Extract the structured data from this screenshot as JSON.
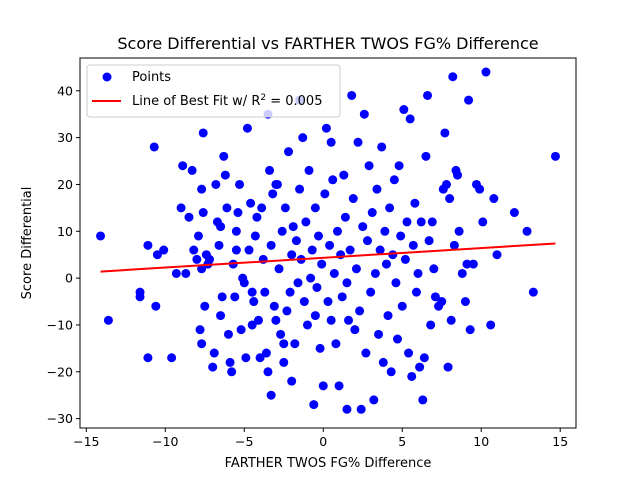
{
  "chart_data": {
    "type": "scatter",
    "title": "Score Differential vs FARTHER TWOS FG% Difference",
    "xlabel": "FARTHER TWOS FG% Difference",
    "ylabel": "Score Differential",
    "xlim": [
      -15.4,
      16.0
    ],
    "ylim": [
      -32,
      47
    ],
    "xticks": [
      -15,
      -10,
      -5,
      0,
      5,
      10,
      15
    ],
    "yticks": [
      -30,
      -20,
      -10,
      0,
      10,
      20,
      30,
      40
    ],
    "grid": false,
    "legend_position": "upper-left",
    "series": [
      {
        "name": "Points",
        "kind": "scatter",
        "color": "#0000ff",
        "points": [
          [
            -14.1,
            9
          ],
          [
            -13.6,
            -9
          ],
          [
            -11.6,
            -3
          ],
          [
            -11.6,
            -4
          ],
          [
            -11.1,
            7
          ],
          [
            -11.1,
            -17
          ],
          [
            -10.7,
            28
          ],
          [
            -10.6,
            -6
          ],
          [
            -10.5,
            5
          ],
          [
            -10.1,
            6
          ],
          [
            -9.6,
            -17
          ],
          [
            -9.3,
            1
          ],
          [
            -9.0,
            15
          ],
          [
            -8.9,
            24
          ],
          [
            -8.7,
            1
          ],
          [
            -8.5,
            13
          ],
          [
            -8.3,
            23
          ],
          [
            -8.2,
            6
          ],
          [
            -8.0,
            4
          ],
          [
            -7.9,
            9
          ],
          [
            -7.8,
            -11
          ],
          [
            -7.7,
            -14
          ],
          [
            -7.7,
            19
          ],
          [
            -7.7,
            2
          ],
          [
            -7.6,
            31
          ],
          [
            -7.6,
            14
          ],
          [
            -7.5,
            -6
          ],
          [
            -7.4,
            5
          ],
          [
            -7.3,
            3
          ],
          [
            -7.2,
            4
          ],
          [
            -7.0,
            -19
          ],
          [
            -6.9,
            -16
          ],
          [
            -6.8,
            20
          ],
          [
            -6.7,
            12
          ],
          [
            -6.6,
            7
          ],
          [
            -6.5,
            -8
          ],
          [
            -6.4,
            -4
          ],
          [
            -6.3,
            26
          ],
          [
            -6.2,
            22
          ],
          [
            -6.1,
            15
          ],
          [
            -6.0,
            -12
          ],
          [
            -5.9,
            -18
          ],
          [
            -5.8,
            -20
          ],
          [
            -5.7,
            3
          ],
          [
            -5.6,
            -4
          ],
          [
            -5.5,
            10
          ],
          [
            -5.4,
            14
          ],
          [
            -5.3,
            20
          ],
          [
            -5.2,
            -11
          ],
          [
            -5.1,
            0
          ],
          [
            -5.0,
            -1
          ],
          [
            -4.9,
            -17
          ],
          [
            -4.8,
            32
          ],
          [
            -4.7,
            6
          ],
          [
            -4.6,
            16
          ],
          [
            -4.5,
            -3
          ],
          [
            -4.4,
            -5
          ],
          [
            -4.3,
            9
          ],
          [
            -4.2,
            13
          ],
          [
            -4.1,
            -9
          ],
          [
            -4.0,
            -17
          ],
          [
            -3.9,
            15
          ],
          [
            -3.8,
            4
          ],
          [
            -3.7,
            -3
          ],
          [
            -3.6,
            -16
          ],
          [
            -3.5,
            35
          ],
          [
            -3.5,
            -20
          ],
          [
            -3.4,
            23
          ],
          [
            -3.3,
            7
          ],
          [
            -3.3,
            -25
          ],
          [
            -3.2,
            18
          ],
          [
            -3.1,
            -6
          ],
          [
            -3.0,
            -9
          ],
          [
            -2.9,
            20
          ],
          [
            -2.8,
            2
          ],
          [
            -2.7,
            -12
          ],
          [
            -2.6,
            10
          ],
          [
            -2.5,
            -18
          ],
          [
            -2.4,
            15
          ],
          [
            -2.3,
            -7
          ],
          [
            -2.2,
            27
          ],
          [
            -2.1,
            -3
          ],
          [
            -2.0,
            5
          ],
          [
            -1.9,
            11
          ],
          [
            -1.8,
            -14
          ],
          [
            -1.7,
            8
          ],
          [
            -1.6,
            -1
          ],
          [
            -1.5,
            19
          ],
          [
            -1.4,
            4
          ],
          [
            -1.3,
            30
          ],
          [
            -1.2,
            -5
          ],
          [
            -1.1,
            12
          ],
          [
            -1.0,
            -10
          ],
          [
            -0.9,
            23
          ],
          [
            -0.8,
            0
          ],
          [
            -0.7,
            6
          ],
          [
            -0.6,
            -27
          ],
          [
            -0.5,
            15
          ],
          [
            -0.4,
            -2
          ],
          [
            -0.3,
            9
          ],
          [
            -0.2,
            -15
          ],
          [
            -0.1,
            3
          ],
          [
            0.0,
            -23
          ],
          [
            0.1,
            18
          ],
          [
            0.2,
            32
          ],
          [
            0.3,
            -5
          ],
          [
            0.4,
            7
          ],
          [
            0.5,
            -9
          ],
          [
            0.6,
            21
          ],
          [
            0.7,
            1
          ],
          [
            0.8,
            -14
          ],
          [
            0.9,
            10
          ],
          [
            1.0,
            -23
          ],
          [
            1.1,
            5
          ],
          [
            1.2,
            -4
          ],
          [
            1.3,
            22
          ],
          [
            1.4,
            13
          ],
          [
            1.5,
            -1
          ],
          [
            1.6,
            -9
          ],
          [
            1.7,
            6
          ],
          [
            1.8,
            39
          ],
          [
            1.9,
            17
          ],
          [
            2.0,
            -11
          ],
          [
            2.1,
            2
          ],
          [
            2.2,
            29
          ],
          [
            2.3,
            -7
          ],
          [
            2.4,
            -28
          ],
          [
            2.5,
            11
          ],
          [
            2.6,
            35
          ],
          [
            2.7,
            -16
          ],
          [
            2.8,
            8
          ],
          [
            2.9,
            24
          ],
          [
            3.0,
            -3
          ],
          [
            3.1,
            14
          ],
          [
            3.2,
            -26
          ],
          [
            3.3,
            1
          ],
          [
            3.4,
            19
          ],
          [
            3.5,
            -12
          ],
          [
            3.6,
            6
          ],
          [
            3.7,
            28
          ],
          [
            3.8,
            -18
          ],
          [
            3.9,
            10
          ],
          [
            4.0,
            3
          ],
          [
            4.1,
            -8
          ],
          [
            4.2,
            15
          ],
          [
            4.3,
            -20
          ],
          [
            4.4,
            5
          ],
          [
            4.5,
            21
          ],
          [
            4.6,
            -1
          ],
          [
            4.7,
            -13
          ],
          [
            4.8,
            24
          ],
          [
            4.9,
            9
          ],
          [
            5.0,
            -6
          ],
          [
            5.1,
            36
          ],
          [
            5.2,
            4
          ],
          [
            5.3,
            12
          ],
          [
            5.4,
            -16
          ],
          [
            5.5,
            34
          ],
          [
            5.6,
            -21
          ],
          [
            5.7,
            7
          ],
          [
            5.8,
            16
          ],
          [
            5.9,
            -3
          ],
          [
            6.0,
            1
          ],
          [
            6.1,
            -19
          ],
          [
            6.2,
            12
          ],
          [
            6.3,
            -26
          ],
          [
            6.4,
            -17
          ],
          [
            6.5,
            26
          ],
          [
            6.6,
            39
          ],
          [
            6.7,
            8
          ],
          [
            6.8,
            -10
          ],
          [
            6.9,
            12
          ],
          [
            7.0,
            2
          ],
          [
            7.1,
            -4
          ],
          [
            7.3,
            -6
          ],
          [
            7.5,
            -5
          ],
          [
            7.6,
            19
          ],
          [
            7.7,
            31
          ],
          [
            7.8,
            20
          ],
          [
            7.9,
            -19
          ],
          [
            8.0,
            17
          ],
          [
            8.1,
            -9
          ],
          [
            8.2,
            43
          ],
          [
            8.3,
            7
          ],
          [
            8.4,
            23
          ],
          [
            8.5,
            22
          ],
          [
            8.6,
            10
          ],
          [
            8.8,
            1
          ],
          [
            9.0,
            -5
          ],
          [
            9.1,
            3
          ],
          [
            9.2,
            38
          ],
          [
            9.3,
            -11
          ],
          [
            9.5,
            3
          ],
          [
            9.7,
            20
          ],
          [
            9.9,
            19
          ],
          [
            10.1,
            12
          ],
          [
            10.3,
            44
          ],
          [
            10.6,
            -10
          ],
          [
            10.8,
            17
          ],
          [
            11.0,
            5
          ],
          [
            12.1,
            14
          ],
          [
            12.9,
            10
          ],
          [
            13.3,
            -3
          ],
          [
            14.7,
            26
          ],
          [
            -2.0,
            -22
          ],
          [
            -1.5,
            38
          ],
          [
            -0.5,
            -8
          ],
          [
            0.5,
            29
          ],
          [
            1.5,
            -28
          ],
          [
            -3.0,
            20
          ],
          [
            -6.5,
            11
          ],
          [
            -4.5,
            -10
          ],
          [
            -5.5,
            6
          ],
          [
            -2.5,
            -14
          ]
        ]
      },
      {
        "name": "Line of Best Fit w/ R^2 = 0.005",
        "kind": "line",
        "color": "#ff0000",
        "points": [
          [
            -14.1,
            1.4
          ],
          [
            14.7,
            7.4
          ]
        ]
      }
    ],
    "legend": [
      {
        "marker": "circle",
        "label": "Points",
        "label_main": "Points",
        "label_sup": ""
      },
      {
        "marker": "line",
        "label": "Line of Best Fit w/ R^2 = 0.005",
        "label_main": "Line of Best Fit w/ R",
        "label_sup": "2",
        "label_post": " = 0.005"
      }
    ]
  }
}
